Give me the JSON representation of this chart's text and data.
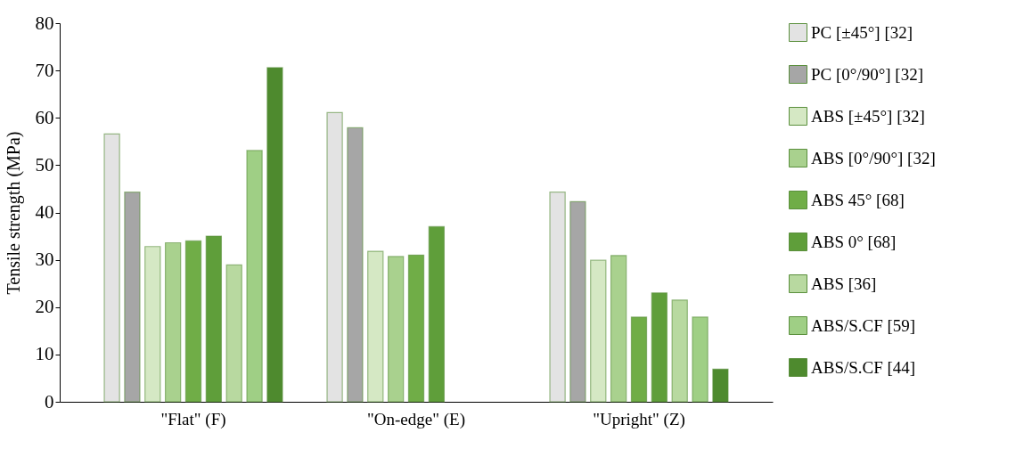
{
  "chart_data": {
    "type": "bar",
    "ylabel": "Tensile strength (MPa)",
    "categories": [
      "\"Flat\" (F)",
      "\"On-edge\" (E)",
      "\"Upright\" (Z)"
    ],
    "series": [
      {
        "name": "PC [±45°] [32]",
        "color": "#e3e3e3",
        "values": [
          56.6,
          61.1,
          44.3
        ]
      },
      {
        "name": "PC [0°/90°] [32]",
        "color": "#a6a6a6",
        "values": [
          44.3,
          57.9,
          42.3
        ]
      },
      {
        "name": "ABS [±45°] [32]",
        "color": "#d5e8c4",
        "values": [
          32.8,
          31.8,
          29.9
        ]
      },
      {
        "name": "ABS [0°/90°] [32]",
        "color": "#a9d18e",
        "values": [
          33.6,
          30.7,
          30.9
        ]
      },
      {
        "name": "ABS 45° [68]",
        "color": "#70ad47",
        "values": [
          34.0,
          31.0,
          17.9
        ]
      },
      {
        "name": "ABS 0° [68]",
        "color": "#5f9e3a",
        "values": [
          35.0,
          37.0,
          23.0
        ]
      },
      {
        "name": "ABS [36]",
        "color": "#b8d9a0",
        "values": [
          28.9,
          null,
          21.5
        ]
      },
      {
        "name": "ABS/S.CF [59]",
        "color": "#9fcf85",
        "values": [
          53.1,
          null,
          17.9
        ]
      },
      {
        "name": "ABS/S.CF [44]",
        "color": "#4e8a2e",
        "values": [
          70.6,
          null,
          6.9
        ]
      }
    ],
    "ylim": [
      0,
      80
    ],
    "yticks": [
      0,
      10,
      20,
      30,
      40,
      50,
      60,
      70,
      80
    ],
    "grid": false,
    "legend": "right"
  }
}
